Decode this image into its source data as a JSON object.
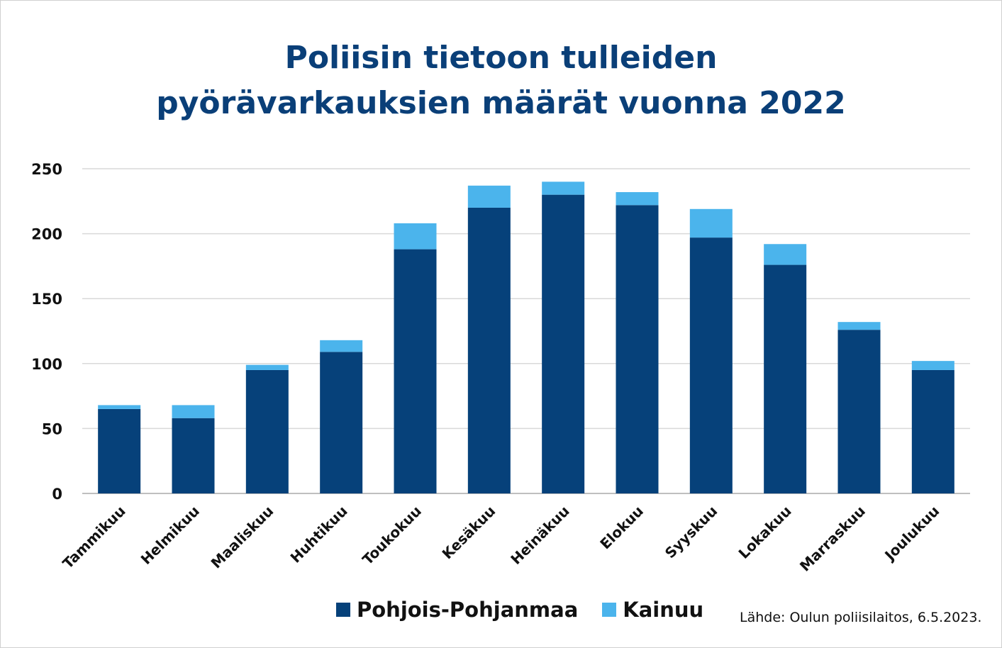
{
  "chart_data": {
    "type": "bar",
    "stacked": true,
    "title": "Poliisin tietoon tulleiden pyörävarkauksien määrät vuonna 2022",
    "title_lines": [
      "Poliisin tietoon tulleiden",
      "pyörävarkauksien määrät vuonna 2022"
    ],
    "xlabel": "",
    "ylabel": "",
    "ylim": [
      0,
      250
    ],
    "yticks": [
      0,
      50,
      100,
      150,
      200,
      250
    ],
    "grid": true,
    "legend_placement": "bottom",
    "categories": [
      "Tammikuu",
      "Helmikuu",
      "Maaliskuu",
      "Huhtikuu",
      "Toukokuu",
      "Kesäkuu",
      "Heinäkuu",
      "Elokuu",
      "Syyskuu",
      "Lokakuu",
      "Marraskuu",
      "Joulukuu"
    ],
    "series": [
      {
        "name": "Pohjois-Pohjanmaa",
        "color": "#06417a",
        "values": [
          65,
          58,
          95,
          109,
          188,
          220,
          230,
          222,
          197,
          176,
          126,
          95
        ]
      },
      {
        "name": "Kainuu",
        "color": "#4bb4ec",
        "values": [
          3,
          10,
          4,
          9,
          20,
          17,
          10,
          10,
          22,
          16,
          6,
          7
        ]
      }
    ],
    "source": "Lähde: Oulun poliisilaitos, 6.5.2023."
  }
}
